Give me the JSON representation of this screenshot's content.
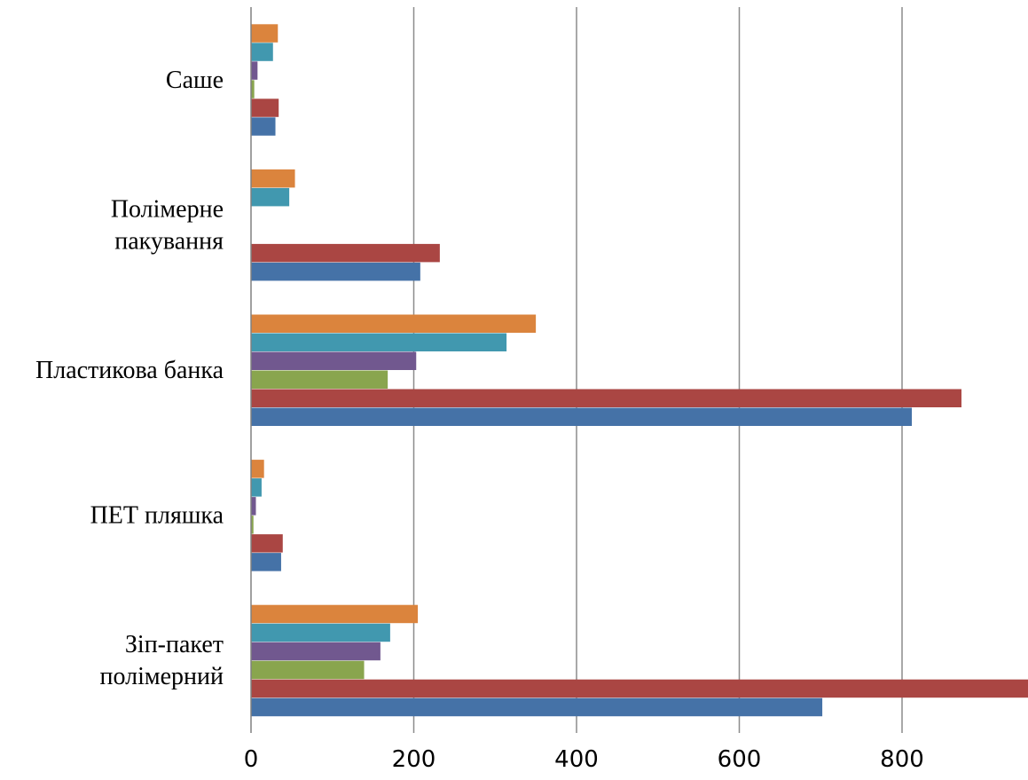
{
  "chart_data": {
    "type": "bar",
    "orientation": "horizontal",
    "categories": [
      [
        "Зіп-пакет",
        "полімерний"
      ],
      [
        "ПЕТ пляшка"
      ],
      [
        "Пластикова банка"
      ],
      [
        "Полімерне",
        "пакування"
      ],
      [
        "Саше"
      ]
    ],
    "series": [
      {
        "color": "#4572A7",
        "values": [
          702,
          37,
          812,
          208,
          30
        ]
      },
      {
        "color": "#AA4643",
        "values": [
          955,
          39,
          873,
          232,
          34
        ]
      },
      {
        "color": "#89A54E",
        "values": [
          139,
          3,
          168,
          null,
          4
        ]
      },
      {
        "color": "#71588F",
        "values": [
          159,
          6,
          203,
          null,
          8
        ]
      },
      {
        "color": "#4198AF",
        "values": [
          171,
          13,
          314,
          47,
          27
        ]
      },
      {
        "color": "#DB843D",
        "values": [
          205,
          16,
          350,
          54,
          33
        ]
      }
    ],
    "xlim": [
      0,
      955
    ],
    "xticks": [
      0,
      200,
      400,
      600,
      800
    ],
    "grid": true,
    "legend": "none"
  }
}
